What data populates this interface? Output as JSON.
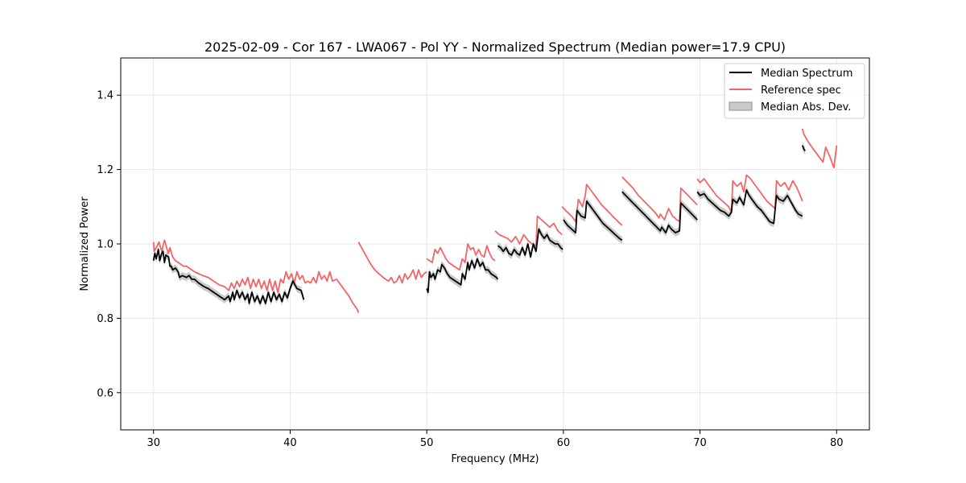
{
  "chart_data": {
    "type": "line",
    "title": "2025-02-09 - Cor 167 - LWA067 - Pol YY - Normalized Spectrum (Median power=17.9 CPU)",
    "xlabel": "Frequency (MHz)",
    "ylabel": "Normalized Power",
    "xlim": [
      27.6,
      82.4
    ],
    "ylim": [
      0.5,
      1.5
    ],
    "xticks": [
      30,
      40,
      50,
      60,
      70,
      80
    ],
    "yticks": [
      0.6,
      0.8,
      1.0,
      1.2,
      1.4
    ],
    "xtick_labels": [
      "30",
      "40",
      "50",
      "60",
      "70",
      "80"
    ],
    "ytick_labels": [
      "0.6",
      "0.8",
      "1.0",
      "1.2",
      "1.4"
    ],
    "grid": true,
    "legend_position": "top-right",
    "colors": {
      "median": "#000000",
      "reference": "#f46464",
      "mad": "#a6a6a6"
    },
    "series": [
      {
        "name": "Median Spectrum",
        "segments": [
          {
            "x": [
              30.0,
              30.1,
              30.2,
              30.35,
              30.45,
              30.6,
              30.7,
              30.8,
              30.9,
              31.1,
              31.2,
              31.3,
              31.4,
              31.6,
              31.8,
              31.9,
              32.1,
              32.4,
              32.6,
              32.8,
              33.0,
              33.3,
              33.7,
              34.0,
              34.4,
              34.8,
              35.2,
              35.5,
              35.6,
              35.8,
              35.9,
              36.1,
              36.3,
              36.5,
              36.7,
              36.9,
              37.0,
              37.2,
              37.4,
              37.6,
              37.8,
              38.0,
              38.2,
              38.4,
              38.6,
              38.8,
              39.0,
              39.2,
              39.4,
              39.6,
              39.8,
              40.0,
              40.2,
              40.5,
              40.8,
              41.0
            ],
            "y": [
              0.955,
              0.975,
              0.96,
              0.985,
              0.955,
              0.975,
              0.98,
              0.95,
              0.97,
              0.965,
              0.94,
              0.94,
              0.93,
              0.935,
              0.925,
              0.91,
              0.915,
              0.91,
              0.915,
              0.905,
              0.905,
              0.895,
              0.885,
              0.88,
              0.87,
              0.86,
              0.85,
              0.86,
              0.845,
              0.87,
              0.85,
              0.875,
              0.855,
              0.87,
              0.85,
              0.865,
              0.84,
              0.87,
              0.845,
              0.86,
              0.84,
              0.86,
              0.84,
              0.87,
              0.845,
              0.87,
              0.85,
              0.865,
              0.845,
              0.87,
              0.855,
              0.88,
              0.9,
              0.88,
              0.875,
              0.85
            ]
          },
          {
            "x": [
              50.0,
              50.1,
              50.2,
              50.3,
              50.5,
              50.6,
              50.8,
              51.0,
              51.1,
              51.3,
              51.5,
              51.7,
              51.9,
              52.1,
              52.3,
              52.5,
              52.6,
              52.8,
              53.0,
              53.1,
              53.3,
              53.5,
              53.7,
              53.9,
              54.1,
              54.3,
              54.5,
              54.7,
              54.9,
              55.1,
              55.2
            ],
            "y": [
              0.88,
              0.87,
              0.925,
              0.91,
              0.92,
              0.905,
              0.93,
              0.925,
              0.945,
              0.935,
              0.92,
              0.91,
              0.905,
              0.9,
              0.895,
              0.89,
              0.92,
              0.905,
              0.95,
              0.93,
              0.955,
              0.935,
              0.96,
              0.94,
              0.95,
              0.93,
              0.93,
              0.92,
              0.915,
              0.91,
              0.905
            ]
          },
          {
            "x": [
              55.2,
              55.4,
              55.6,
              55.8,
              56.0,
              56.2,
              56.4,
              56.6,
              56.8,
              57.0,
              57.2,
              57.4,
              57.6,
              57.8,
              58.0,
              58.2,
              58.4,
              58.6,
              58.8,
              59.0,
              59.2,
              59.4,
              59.6,
              59.8,
              59.95
            ],
            "y": [
              0.995,
              0.99,
              0.98,
              0.99,
              0.975,
              0.97,
              0.985,
              0.975,
              0.97,
              0.99,
              0.97,
              1.0,
              0.965,
              1.0,
              0.98,
              1.04,
              1.025,
              1.015,
              1.025,
              1.01,
              1.005,
              1.0,
              1.0,
              0.99,
              0.985
            ]
          },
          {
            "x": [
              60.0,
              60.3,
              60.6,
              60.9,
              61.0,
              61.3,
              61.6,
              61.7,
              62.0,
              62.3,
              62.6,
              62.9,
              63.2,
              63.5,
              63.8,
              64.1,
              64.3
            ],
            "y": [
              1.065,
              1.05,
              1.04,
              1.03,
              1.09,
              1.075,
              1.07,
              1.115,
              1.1,
              1.085,
              1.07,
              1.055,
              1.045,
              1.035,
              1.025,
              1.015,
              1.01
            ]
          },
          {
            "x": [
              64.3,
              64.7,
              65.1,
              65.5,
              65.9,
              66.3,
              66.7,
              67.1,
              67.2,
              67.5,
              67.7,
              67.9,
              68.2,
              68.5,
              68.6,
              69.0,
              69.4,
              69.8
            ],
            "y": [
              1.14,
              1.125,
              1.11,
              1.095,
              1.08,
              1.065,
              1.05,
              1.035,
              1.045,
              1.03,
              1.05,
              1.04,
              1.03,
              1.035,
              1.11,
              1.095,
              1.08,
              1.065
            ]
          },
          {
            "x": [
              69.8,
              70.0,
              70.3,
              70.6,
              70.9,
              71.2,
              71.5,
              71.8,
              72.1,
              72.3,
              72.4,
              72.7,
              72.9,
              73.2,
              73.4,
              73.6,
              73.9,
              74.2,
              74.5,
              74.8,
              75.1,
              75.4,
              75.6,
              75.8,
              76.1,
              76.4,
              76.7,
              77.0,
              77.2,
              77.5
            ],
            "y": [
              1.14,
              1.13,
              1.135,
              1.12,
              1.11,
              1.1,
              1.09,
              1.085,
              1.075,
              1.085,
              1.12,
              1.11,
              1.125,
              1.105,
              1.145,
              1.13,
              1.115,
              1.1,
              1.09,
              1.075,
              1.06,
              1.055,
              1.13,
              1.12,
              1.115,
              1.13,
              1.11,
              1.09,
              1.08,
              1.075
            ]
          },
          {
            "x": [
              77.5,
              77.6,
              77.7
            ],
            "y": [
              1.265,
              1.255,
              1.25
            ]
          }
        ]
      },
      {
        "name": "Reference spec",
        "segments": [
          {
            "x": [
              30.0,
              30.05,
              30.2,
              30.4,
              30.6,
              30.8,
              31.0,
              31.1,
              31.2,
              31.4,
              31.6,
              31.8,
              32.0,
              32.2,
              32.4,
              32.6,
              32.8,
              33.0,
              33.3,
              33.6,
              34.0,
              34.4,
              34.8,
              35.2,
              35.5,
              35.7,
              35.9,
              36.1,
              36.3,
              36.5,
              36.7,
              36.9,
              37.1,
              37.3,
              37.5,
              37.7,
              37.9,
              38.1,
              38.3,
              38.5,
              38.7,
              38.9,
              39.1,
              39.3,
              39.5,
              39.7,
              39.9,
              40.1,
              40.3,
              40.5,
              40.7,
              40.9,
              41.1,
              41.3,
              41.5,
              41.7,
              41.9,
              42.1,
              42.3,
              42.5,
              42.7,
              42.9,
              43.1,
              43.4,
              43.7,
              44.0,
              44.3,
              44.6,
              44.9,
              45.0
            ],
            "y": [
              1.005,
              0.98,
              0.99,
              1.005,
              0.98,
              1.01,
              0.985,
              0.975,
              0.99,
              0.965,
              0.955,
              0.95,
              0.945,
              0.94,
              0.94,
              0.935,
              0.93,
              0.925,
              0.92,
              0.915,
              0.91,
              0.9,
              0.89,
              0.885,
              0.875,
              0.895,
              0.88,
              0.9,
              0.885,
              0.905,
              0.89,
              0.91,
              0.88,
              0.905,
              0.885,
              0.905,
              0.88,
              0.9,
              0.875,
              0.905,
              0.875,
              0.9,
              0.87,
              0.905,
              0.895,
              0.925,
              0.905,
              0.92,
              0.895,
              0.925,
              0.905,
              0.915,
              0.895,
              0.9,
              0.895,
              0.91,
              0.895,
              0.925,
              0.905,
              0.915,
              0.9,
              0.925,
              0.9,
              0.905,
              0.89,
              0.875,
              0.86,
              0.84,
              0.825,
              0.815
            ]
          },
          {
            "x": [
              45.0,
              45.3,
              45.6,
              45.9,
              46.2,
              46.5,
              46.8,
              47.0,
              47.2,
              47.4,
              47.6,
              47.8,
              48.0,
              48.2,
              48.4,
              48.6,
              48.8,
              49.0,
              49.2,
              49.4,
              49.6,
              49.8,
              50.0
            ],
            "y": [
              1.005,
              0.985,
              0.965,
              0.945,
              0.93,
              0.92,
              0.91,
              0.905,
              0.9,
              0.91,
              0.895,
              0.9,
              0.915,
              0.895,
              0.92,
              0.905,
              0.915,
              0.93,
              0.905,
              0.93,
              0.91,
              0.92,
              0.925
            ]
          },
          {
            "x": [
              50.0,
              50.2,
              50.4,
              50.6,
              50.8,
              51.0,
              51.2,
              51.4,
              51.6,
              51.8,
              52.0,
              52.2,
              52.4,
              52.6,
              52.8,
              53.0,
              53.2,
              53.4,
              53.6,
              53.8,
              54.0,
              54.2,
              54.4,
              54.6,
              54.8,
              55.0
            ],
            "y": [
              0.96,
              0.955,
              0.95,
              0.985,
              0.975,
              0.99,
              0.975,
              0.96,
              0.95,
              0.945,
              0.94,
              0.935,
              0.93,
              0.96,
              0.95,
              1.0,
              0.985,
              0.99,
              0.97,
              0.985,
              0.97,
              0.965,
              0.995,
              0.975,
              0.96,
              0.955
            ]
          },
          {
            "x": [
              55.0,
              55.3,
              55.6,
              55.9,
              56.2,
              56.5,
              56.8,
              57.1,
              57.4,
              57.7,
              58.0,
              58.1,
              58.4,
              58.7,
              59.0,
              59.3,
              59.6,
              59.9
            ],
            "y": [
              1.035,
              1.025,
              1.02,
              1.015,
              1.005,
              1.02,
              1.0,
              1.025,
              1.01,
              1.0,
              0.995,
              1.075,
              1.065,
              1.055,
              1.045,
              1.055,
              1.035,
              1.025
            ]
          },
          {
            "x": [
              59.9,
              60.3,
              60.6,
              60.9,
              61.1,
              61.4,
              61.6,
              61.7,
              62.0,
              62.4,
              62.8,
              63.2,
              63.6,
              64.0,
              64.3
            ],
            "y": [
              1.1,
              1.085,
              1.075,
              1.06,
              1.12,
              1.1,
              1.13,
              1.16,
              1.145,
              1.125,
              1.105,
              1.09,
              1.075,
              1.06,
              1.05
            ]
          },
          {
            "x": [
              64.3,
              64.7,
              65.1,
              65.5,
              65.9,
              66.3,
              66.7,
              67.0,
              67.1,
              67.4,
              67.7,
              68.0,
              68.3,
              68.5,
              68.6,
              69.0,
              69.4,
              69.8
            ],
            "y": [
              1.18,
              1.165,
              1.15,
              1.13,
              1.115,
              1.1,
              1.085,
              1.07,
              1.08,
              1.065,
              1.095,
              1.075,
              1.065,
              1.06,
              1.15,
              1.135,
              1.12,
              1.105
            ]
          },
          {
            "x": [
              69.8,
              70.0,
              70.3,
              70.6,
              70.9,
              71.2,
              71.5,
              71.8,
              72.1,
              72.3,
              72.4,
              72.7,
              73.0,
              73.2,
              73.4,
              73.7,
              74.0,
              74.3,
              74.6,
              74.9,
              75.2,
              75.5,
              75.6,
              75.9,
              76.2,
              76.5,
              76.8,
              77.1,
              77.4,
              77.5
            ],
            "y": [
              1.175,
              1.165,
              1.175,
              1.16,
              1.145,
              1.13,
              1.12,
              1.11,
              1.1,
              1.085,
              1.17,
              1.155,
              1.165,
              1.14,
              1.185,
              1.175,
              1.16,
              1.145,
              1.13,
              1.115,
              1.105,
              1.095,
              1.17,
              1.155,
              1.165,
              1.145,
              1.17,
              1.15,
              1.125,
              1.115
            ]
          },
          {
            "x": [
              77.5,
              77.6,
              78.0,
              78.5,
              79.0,
              79.2,
              79.5,
              79.8,
              80.0
            ],
            "y": [
              1.31,
              1.295,
              1.27,
              1.245,
              1.22,
              1.26,
              1.235,
              1.205,
              1.265
            ]
          }
        ]
      }
    ],
    "band": {
      "name": "Median Abs. Dev.",
      "half_width": 0.01
    }
  },
  "legend": {
    "median_label": "Median Spectrum",
    "reference_label": "Reference spec",
    "mad_label": "Median Abs. Dev."
  }
}
